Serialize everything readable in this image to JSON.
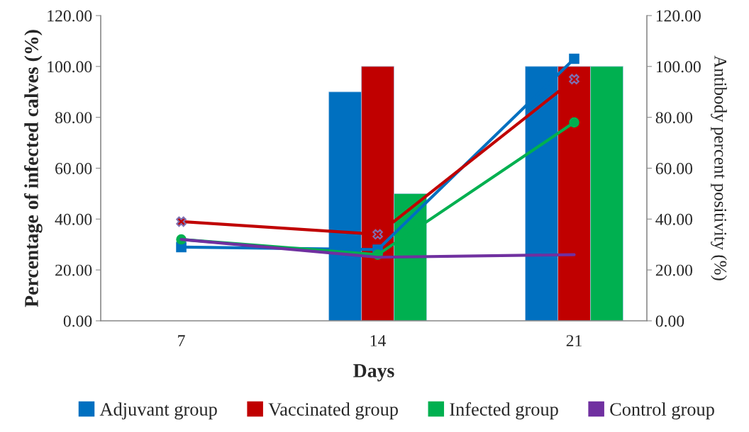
{
  "chart_data": {
    "type": "bar",
    "xlabel": "Days",
    "ylabel": "Percentage of infected calves (%)",
    "y2label": "Antibody percent positivity (%)",
    "categories": [
      "7",
      "14",
      "21"
    ],
    "series": [
      {
        "name": "Adjuvant group",
        "color": "#0070c0",
        "values": [
          null,
          90,
          100
        ]
      },
      {
        "name": "Vaccinated group",
        "color": "#c00000",
        "values": [
          null,
          100,
          100
        ]
      },
      {
        "name": "Infected group",
        "color": "#00b050",
        "values": [
          null,
          50,
          100
        ]
      },
      {
        "type": "line",
        "color": "#0070c0",
        "marker": "square",
        "values": [
          29,
          28,
          103
        ]
      },
      {
        "type": "line",
        "color": "#c00000",
        "marker": "cross",
        "values": [
          39,
          34,
          95
        ]
      },
      {
        "type": "line",
        "color": "#00b050",
        "marker": "circle",
        "values": [
          32,
          26,
          78
        ]
      },
      {
        "name": "Control group",
        "type": "line",
        "color": "#7030a0",
        "marker": "none",
        "values": [
          32,
          25,
          26
        ]
      }
    ],
    "ylim": [
      0,
      120
    ],
    "yticks": [
      {
        "value": 0,
        "label": "0.00"
      },
      {
        "value": 20,
        "label": "20.00"
      },
      {
        "value": 40,
        "label": "40.00"
      },
      {
        "value": 60,
        "label": "60.00"
      },
      {
        "value": 80,
        "label": "80.00"
      },
      {
        "value": 100,
        "label": "100.00"
      },
      {
        "value": 120,
        "label": "120.00"
      }
    ],
    "y2lim": [
      0,
      120
    ],
    "y2ticks": [
      {
        "value": 0,
        "label": "0.00"
      },
      {
        "value": 20,
        "label": "20.00"
      },
      {
        "value": 40,
        "label": "40.00"
      },
      {
        "value": 60,
        "label": "60.00"
      },
      {
        "value": 80,
        "label": "80.00"
      },
      {
        "value": 100,
        "label": "100.00"
      },
      {
        "value": 120,
        "label": "120.00"
      }
    ],
    "grid": false,
    "legend": "bottom"
  }
}
